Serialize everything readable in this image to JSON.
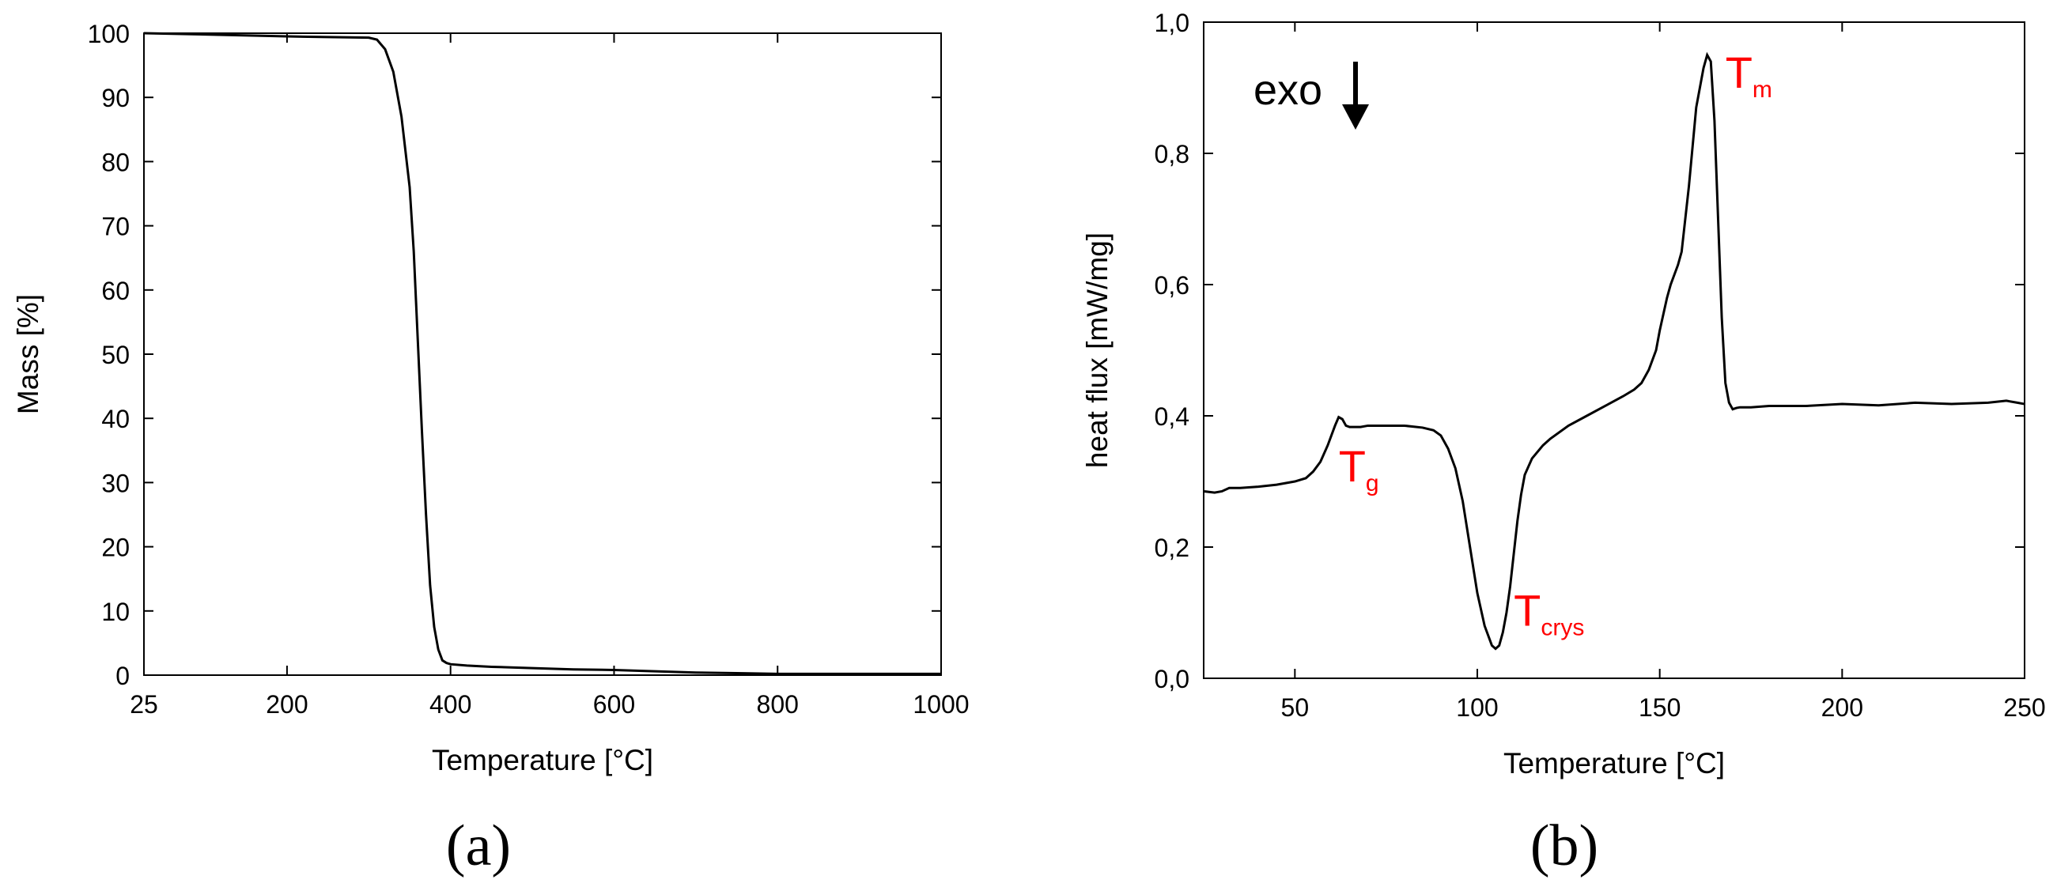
{
  "chart_data": [
    {
      "type": "line",
      "panel_label": "(a)",
      "title": "",
      "xlabel": "Temperature [°C]",
      "ylabel": "Mass [%]",
      "xlim": [
        25,
        1000
      ],
      "ylim": [
        0,
        100
      ],
      "xticks": [
        25,
        200,
        400,
        600,
        800,
        1000
      ],
      "xtick_labels": [
        "25",
        "200",
        "400",
        "600",
        "800",
        "1000"
      ],
      "yticks": [
        0,
        10,
        20,
        30,
        40,
        50,
        60,
        70,
        80,
        90,
        100
      ],
      "ytick_labels": [
        "0",
        "10",
        "20",
        "30",
        "40",
        "50",
        "60",
        "70",
        "80",
        "90",
        "100"
      ],
      "grid": false,
      "line_color": "#000000",
      "series": [
        {
          "x": [
            25,
            100,
            200,
            250,
            300,
            310,
            320,
            330,
            340,
            350,
            355,
            360,
            365,
            370,
            375,
            380,
            385,
            390,
            395,
            400,
            420,
            450,
            500,
            550,
            600,
            650,
            700,
            750,
            800,
            850,
            900,
            950,
            1000
          ],
          "y": [
            100,
            99.8,
            99.5,
            99.4,
            99.3,
            99.0,
            97.5,
            94.0,
            87.0,
            76.0,
            66.0,
            52.0,
            38.0,
            25.0,
            14.0,
            7.5,
            4.0,
            2.3,
            1.9,
            1.7,
            1.5,
            1.3,
            1.1,
            0.9,
            0.8,
            0.6,
            0.4,
            0.3,
            0.2,
            0.2,
            0.2,
            0.2,
            0.2
          ]
        }
      ]
    },
    {
      "type": "line",
      "panel_label": "(b)",
      "title": "",
      "xlabel": "Temperature [°C]",
      "ylabel": "heat flux [mW/mg]",
      "xlim": [
        25,
        250
      ],
      "ylim": [
        0.0,
        1.0
      ],
      "xticks": [
        50,
        100,
        150,
        200,
        250
      ],
      "xtick_labels": [
        "50",
        "100",
        "150",
        "200",
        "250"
      ],
      "yticks": [
        0.0,
        0.2,
        0.4,
        0.6,
        0.8,
        1.0
      ],
      "ytick_labels": [
        "0,0",
        "0,2",
        "0,4",
        "0,6",
        "0,8",
        "1,0"
      ],
      "grid": false,
      "line_color": "#000000",
      "annotation_color": "#ff0000",
      "exo_label": "exo",
      "annotations": [
        {
          "main": "T",
          "sub": "g",
          "x": 62,
          "y": 0.3
        },
        {
          "main": "T",
          "sub": "crys",
          "x": 110,
          "y": 0.08
        },
        {
          "main": "T",
          "sub": "m",
          "x": 168,
          "y": 0.9
        }
      ],
      "series": [
        {
          "x": [
            25,
            28,
            30,
            32,
            35,
            40,
            45,
            50,
            53,
            55,
            57,
            59,
            60,
            61,
            62,
            63,
            64,
            65,
            68,
            70,
            75,
            80,
            85,
            88,
            90,
            92,
            94,
            96,
            98,
            100,
            102,
            104,
            105,
            106,
            107,
            108,
            109,
            110,
            111,
            112,
            113,
            115,
            118,
            120,
            125,
            130,
            135,
            140,
            143,
            145,
            147,
            149,
            150,
            152,
            153,
            155,
            156,
            158,
            160,
            162,
            163,
            164,
            165,
            166,
            167,
            168,
            169,
            170,
            171,
            172,
            175,
            180,
            190,
            200,
            210,
            220,
            230,
            240,
            245,
            248,
            250
          ],
          "y": [
            0.285,
            0.283,
            0.285,
            0.29,
            0.29,
            0.292,
            0.295,
            0.3,
            0.305,
            0.315,
            0.33,
            0.355,
            0.37,
            0.385,
            0.398,
            0.395,
            0.385,
            0.383,
            0.383,
            0.385,
            0.385,
            0.385,
            0.382,
            0.378,
            0.37,
            0.35,
            0.32,
            0.27,
            0.2,
            0.13,
            0.08,
            0.05,
            0.045,
            0.05,
            0.07,
            0.1,
            0.14,
            0.19,
            0.24,
            0.28,
            0.31,
            0.335,
            0.355,
            0.365,
            0.385,
            0.4,
            0.415,
            0.43,
            0.44,
            0.45,
            0.47,
            0.5,
            0.53,
            0.58,
            0.6,
            0.63,
            0.65,
            0.75,
            0.87,
            0.93,
            0.95,
            0.94,
            0.85,
            0.7,
            0.55,
            0.45,
            0.42,
            0.41,
            0.412,
            0.413,
            0.413,
            0.415,
            0.415,
            0.418,
            0.416,
            0.42,
            0.418,
            0.42,
            0.423,
            0.42,
            0.418
          ]
        }
      ]
    }
  ]
}
